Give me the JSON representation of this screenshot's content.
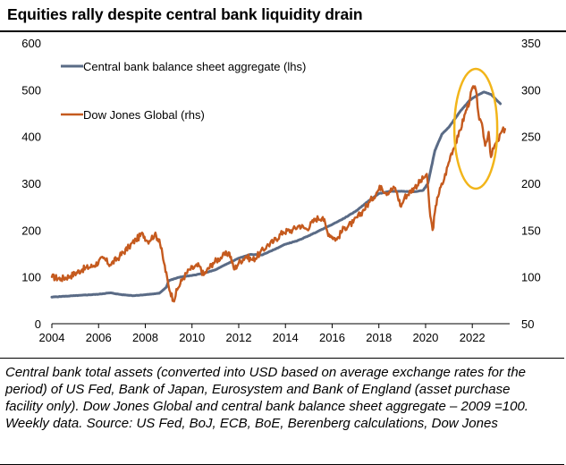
{
  "header": {
    "title": "Equities rally despite central bank liquidity drain"
  },
  "caption": "Central bank total assets (converted into USD based on average exchange rates for the period) of US Fed, Bank of Japan, Eurosystem and Bank of England (asset purchase facility only). Dow Jones Global and central bank balance sheet aggregate – 2009 =100. Weekly data. Source: US Fed, BoJ, ECB, BoE, Berenberg calculations, Dow Jones",
  "colors": {
    "balance_sheet": "#5a6b86",
    "dow_jones": "#c55a1e",
    "highlight_ellipse": "#f2b51a"
  },
  "chart_data": {
    "type": "line",
    "title": "Equities rally despite central bank liquidity drain",
    "x_ticks": [
      "2004",
      "2006",
      "2008",
      "2010",
      "2012",
      "2014",
      "2016",
      "2018",
      "2020",
      "2022"
    ],
    "xlim": [
      2004,
      2023.6
    ],
    "y_left": {
      "ticks": [
        "0",
        "100",
        "200",
        "300",
        "400",
        "500",
        "600"
      ],
      "range": [
        0,
        600
      ]
    },
    "y_right": {
      "ticks": [
        "50",
        "100",
        "150",
        "200",
        "250",
        "300",
        "350"
      ],
      "range": [
        50,
        350
      ]
    },
    "legend": [
      "Central bank balance sheet aggregate (lhs)",
      "Dow Jones Global (rhs)"
    ],
    "legend_position": "top-left",
    "annotation": "yellow ellipse highlighting 2021–2023 period",
    "series": [
      {
        "name": "Central bank balance sheet aggregate (lhs)",
        "axis": "left",
        "points": [
          [
            2004.0,
            57
          ],
          [
            2005.0,
            60
          ],
          [
            2006.0,
            63
          ],
          [
            2006.5,
            66
          ],
          [
            2007.0,
            62
          ],
          [
            2007.5,
            60
          ],
          [
            2008.0,
            62
          ],
          [
            2008.6,
            65
          ],
          [
            2008.9,
            78
          ],
          [
            2009.0,
            92
          ],
          [
            2009.5,
            100
          ],
          [
            2010.0,
            103
          ],
          [
            2010.5,
            108
          ],
          [
            2011.0,
            115
          ],
          [
            2011.5,
            128
          ],
          [
            2012.0,
            140
          ],
          [
            2012.5,
            148
          ],
          [
            2013.0,
            147
          ],
          [
            2013.5,
            158
          ],
          [
            2014.0,
            170
          ],
          [
            2014.5,
            177
          ],
          [
            2015.0,
            188
          ],
          [
            2015.5,
            200
          ],
          [
            2016.0,
            212
          ],
          [
            2016.5,
            225
          ],
          [
            2017.0,
            240
          ],
          [
            2017.5,
            260
          ],
          [
            2018.0,
            278
          ],
          [
            2018.5,
            283
          ],
          [
            2019.0,
            283
          ],
          [
            2019.5,
            282
          ],
          [
            2019.9,
            285
          ],
          [
            2020.1,
            300
          ],
          [
            2020.4,
            370
          ],
          [
            2020.7,
            405
          ],
          [
            2021.0,
            420
          ],
          [
            2021.5,
            455
          ],
          [
            2021.9,
            478
          ],
          [
            2022.2,
            488
          ],
          [
            2022.5,
            495
          ],
          [
            2022.8,
            490
          ],
          [
            2023.0,
            480
          ],
          [
            2023.2,
            470
          ]
        ]
      },
      {
        "name": "Dow Jones Global (rhs)",
        "axis": "right",
        "points": [
          [
            2004.0,
            100
          ],
          [
            2004.4,
            98
          ],
          [
            2004.8,
            101
          ],
          [
            2005.3,
            108
          ],
          [
            2005.8,
            112
          ],
          [
            2006.2,
            120
          ],
          [
            2006.5,
            113
          ],
          [
            2006.9,
            122
          ],
          [
            2007.3,
            132
          ],
          [
            2007.6,
            140
          ],
          [
            2007.9,
            146
          ],
          [
            2008.1,
            138
          ],
          [
            2008.4,
            145
          ],
          [
            2008.6,
            140
          ],
          [
            2008.8,
            115
          ],
          [
            2009.0,
            90
          ],
          [
            2009.2,
            75
          ],
          [
            2009.4,
            88
          ],
          [
            2009.6,
            98
          ],
          [
            2009.9,
            108
          ],
          [
            2010.3,
            112
          ],
          [
            2010.5,
            102
          ],
          [
            2010.9,
            115
          ],
          [
            2011.3,
            122
          ],
          [
            2011.6,
            126
          ],
          [
            2011.8,
            108
          ],
          [
            2012.0,
            115
          ],
          [
            2012.3,
            122
          ],
          [
            2012.6,
            118
          ],
          [
            2012.9,
            125
          ],
          [
            2013.2,
            133
          ],
          [
            2013.5,
            138
          ],
          [
            2013.9,
            148
          ],
          [
            2014.3,
            150
          ],
          [
            2014.6,
            155
          ],
          [
            2014.9,
            151
          ],
          [
            2015.3,
            162
          ],
          [
            2015.6,
            164
          ],
          [
            2015.8,
            148
          ],
          [
            2016.0,
            143
          ],
          [
            2016.2,
            140
          ],
          [
            2016.5,
            152
          ],
          [
            2016.9,
            158
          ],
          [
            2017.3,
            170
          ],
          [
            2017.6,
            180
          ],
          [
            2017.9,
            190
          ],
          [
            2018.1,
            197
          ],
          [
            2018.3,
            190
          ],
          [
            2018.7,
            195
          ],
          [
            2018.95,
            175
          ],
          [
            2019.1,
            185
          ],
          [
            2019.5,
            195
          ],
          [
            2019.9,
            205
          ],
          [
            2020.05,
            210
          ],
          [
            2020.2,
            165
          ],
          [
            2020.3,
            150
          ],
          [
            2020.5,
            185
          ],
          [
            2020.8,
            205
          ],
          [
            2021.1,
            232
          ],
          [
            2021.4,
            250
          ],
          [
            2021.7,
            275
          ],
          [
            2021.9,
            290
          ],
          [
            2022.0,
            302
          ],
          [
            2022.15,
            300
          ],
          [
            2022.3,
            268
          ],
          [
            2022.45,
            258
          ],
          [
            2022.55,
            240
          ],
          [
            2022.7,
            255
          ],
          [
            2022.8,
            228
          ],
          [
            2022.95,
            240
          ],
          [
            2023.1,
            245
          ],
          [
            2023.25,
            255
          ],
          [
            2023.4,
            258
          ]
        ]
      }
    ]
  }
}
